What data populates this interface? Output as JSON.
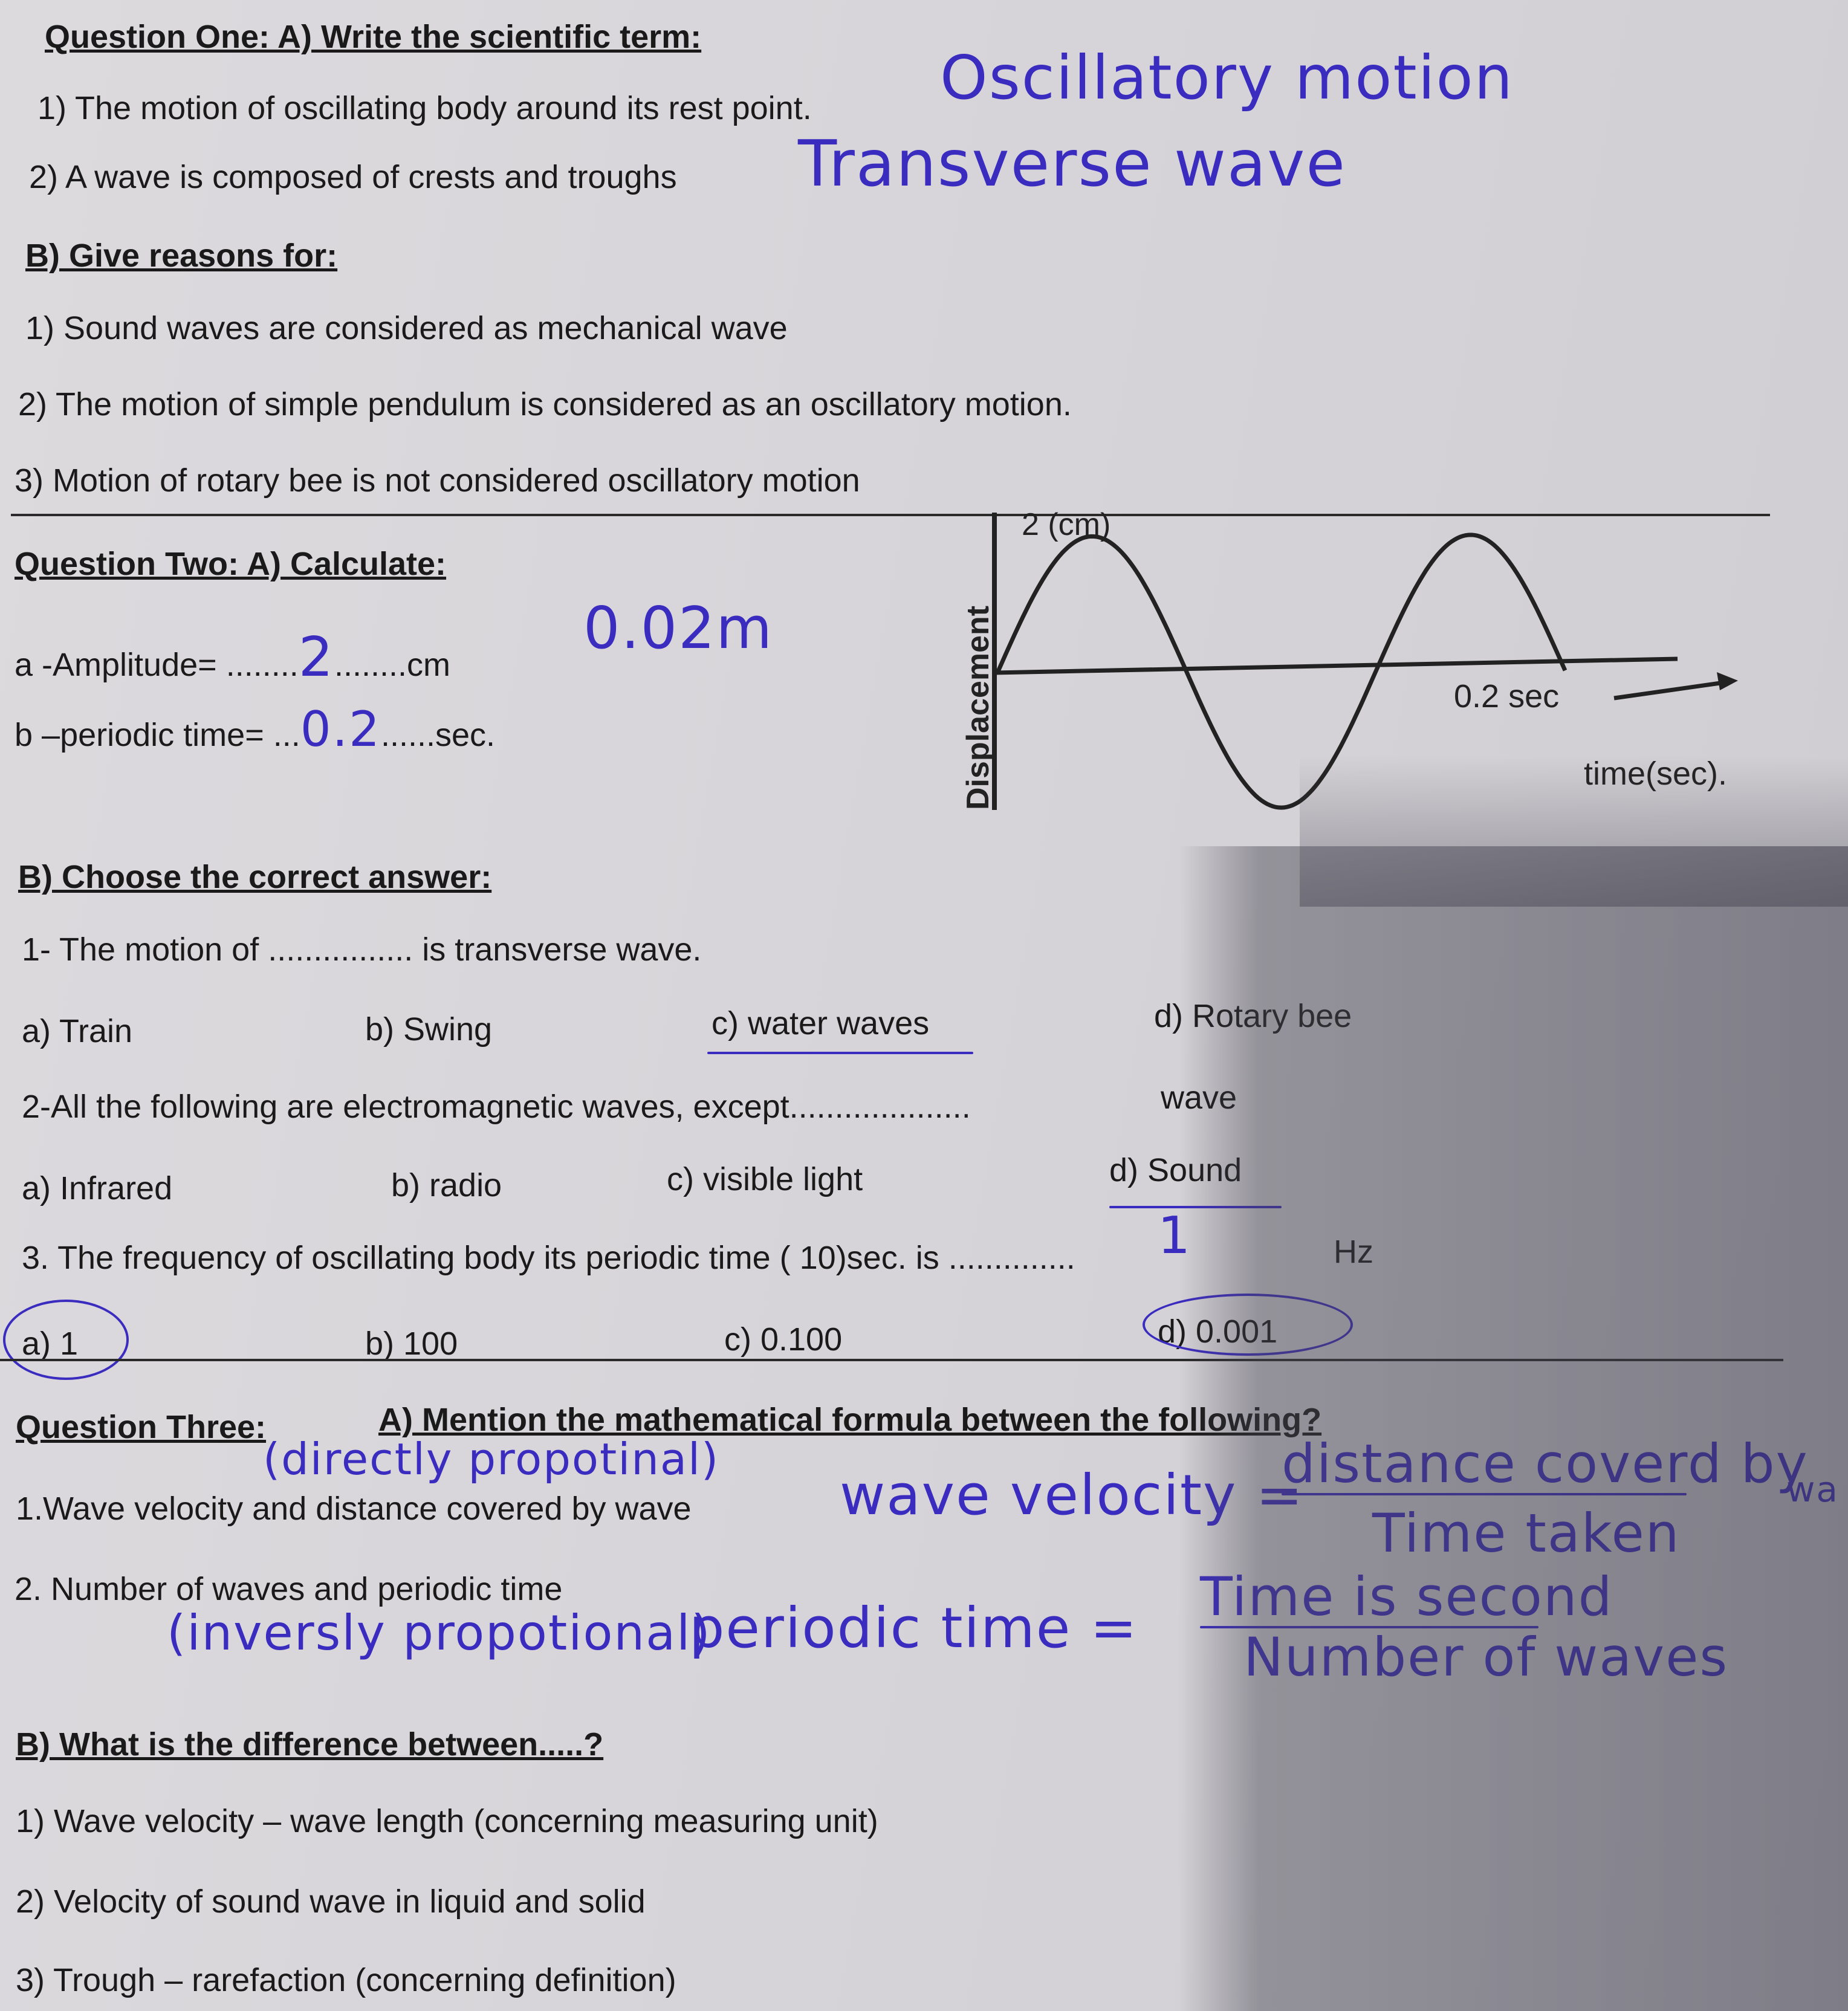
{
  "q1": {
    "title": "Question One:  A) Write the scientific term:",
    "items": [
      {
        "text": "1) The motion of oscillating body around its rest point.",
        "answer": "Oscillatory motion"
      },
      {
        "text": "2) A wave is composed of crests and troughs",
        "answer": "Transverse wave"
      }
    ],
    "b_title": "B) Give reasons for:",
    "reasons": [
      "1) Sound waves are considered as mechanical wave",
      "2) The motion of simple pendulum is considered as an oscillatory motion.",
      "3) Motion of rotary bee is not considered oscillatory motion"
    ]
  },
  "q2": {
    "title": "Question Two: A) Calculate:",
    "amplitude_label": "a -Amplitude= ",
    "amplitude_dots_before": "........",
    "amplitude_answer": "2",
    "amplitude_dots_after": "........cm",
    "amplitude_extra": "0.02m",
    "period_label": "b –periodic time= ...",
    "period_answer": "0.2",
    "period_dots_after": "......sec.",
    "graph": {
      "y_label": "Displacement",
      "amplitude_label": "2 (cm)",
      "time_label": "0.2 sec",
      "x_label": "time(sec)."
    },
    "b_title": "B) Choose the correct answer:",
    "mcq": [
      {
        "question": "1- The motion of ................ is transverse  wave.",
        "options": [
          "a) Train",
          "b) Swing",
          "c) water waves",
          "d) Rotary bee"
        ]
      },
      {
        "question": "2-All the following are electromagnetic waves, except....................",
        "tail": "wave",
        "options": [
          "a) Infrared",
          "b) radio",
          "c) visible light",
          "d) Sound"
        ]
      },
      {
        "question": "3. The frequency of oscillating body its periodic time ( 10)sec. is ..............",
        "answer": "1",
        "tail": "Hz",
        "options": [
          "a) 1",
          "b) 100",
          "c) 0.100",
          "d) 0.001"
        ]
      }
    ]
  },
  "chart_data": {
    "type": "line",
    "title": "",
    "ylabel": "Displacement",
    "xlabel": "time(sec).",
    "annotations": [
      "2 (cm)",
      "0.2 sec"
    ],
    "amplitude": 2,
    "cycles": 1.5,
    "grid": false
  },
  "q3": {
    "title": "Question Three:",
    "a_title": "A) Mention the mathematical formula between the following?",
    "items": [
      {
        "text": "1.Wave velocity and distance covered by wave",
        "note": "(directly propotinal)",
        "lhs": "wave velocity =",
        "numerator": "distance coverd by",
        "numerator_extra": "wa",
        "denominator": "Time taken"
      },
      {
        "text": "2. Number of waves and periodic time",
        "note": "(inversly propotional)",
        "lhs": "periodic time =",
        "numerator": "Time is second",
        "denominator": "Number of waves"
      }
    ],
    "b_title": "B) What is the difference between.....?",
    "diffs": [
      "1) Wave velocity – wave length (concerning measuring unit)",
      "2) Velocity of sound wave in liquid and solid",
      "3) Trough – rarefaction (concerning definition)"
    ]
  },
  "colors": {
    "ink": "#3b2cc0",
    "print": "#1a1a1a",
    "paper": "#d8d6da"
  }
}
